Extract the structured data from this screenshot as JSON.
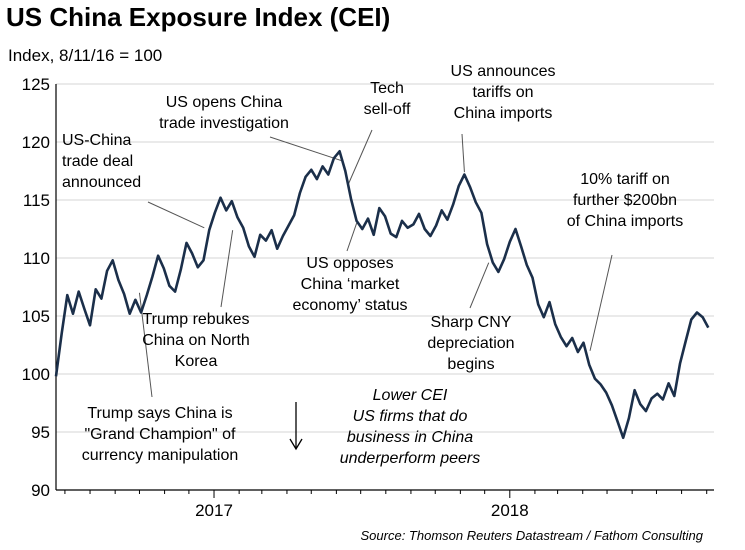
{
  "chart_data": {
    "type": "line",
    "title": "US China Exposure Index (CEI)",
    "subtitle": "Index, 8/11/16 = 100",
    "source": "Source: Thomson Reuters Datastream / Fathom Consulting",
    "ylim": [
      90,
      125
    ],
    "yticks": [
      90,
      95,
      100,
      105,
      110,
      115,
      120,
      125
    ],
    "xticks": [
      {
        "label": "2017",
        "x": "2017-01-01"
      },
      {
        "label": "2018",
        "x": "2018-01-01"
      }
    ],
    "xlim": [
      "2016-06-20",
      "2018-09-10"
    ],
    "grid": true,
    "series": [
      {
        "name": "",
        "color": "#1b2f4a",
        "points": [
          [
            "2016-06-20",
            99.8
          ],
          [
            "2016-06-27",
            103.5
          ],
          [
            "2016-07-04",
            106.8
          ],
          [
            "2016-07-11",
            105.2
          ],
          [
            "2016-07-18",
            107.1
          ],
          [
            "2016-07-25",
            105.6
          ],
          [
            "2016-08-01",
            104.2
          ],
          [
            "2016-08-08",
            107.3
          ],
          [
            "2016-08-15",
            106.5
          ],
          [
            "2016-08-22",
            108.9
          ],
          [
            "2016-08-29",
            109.8
          ],
          [
            "2016-09-05",
            108.1
          ],
          [
            "2016-09-12",
            106.9
          ],
          [
            "2016-09-19",
            105.2
          ],
          [
            "2016-09-26",
            106.4
          ],
          [
            "2016-10-03",
            105.3
          ],
          [
            "2016-10-10",
            106.8
          ],
          [
            "2016-10-17",
            108.4
          ],
          [
            "2016-10-24",
            110.2
          ],
          [
            "2016-10-31",
            109.1
          ],
          [
            "2016-11-07",
            107.6
          ],
          [
            "2016-11-14",
            107.1
          ],
          [
            "2016-11-21",
            109.0
          ],
          [
            "2016-11-28",
            111.3
          ],
          [
            "2016-12-05",
            110.4
          ],
          [
            "2016-12-12",
            109.2
          ],
          [
            "2016-12-19",
            109.8
          ],
          [
            "2016-12-26",
            112.4
          ],
          [
            "2017-01-02",
            113.9
          ],
          [
            "2017-01-09",
            115.2
          ],
          [
            "2017-01-16",
            114.1
          ],
          [
            "2017-01-23",
            114.9
          ],
          [
            "2017-01-30",
            113.5
          ],
          [
            "2017-02-06",
            112.6
          ],
          [
            "2017-02-13",
            111.0
          ],
          [
            "2017-02-20",
            110.1
          ],
          [
            "2017-02-27",
            112.0
          ],
          [
            "2017-03-06",
            111.5
          ],
          [
            "2017-03-13",
            112.4
          ],
          [
            "2017-03-20",
            110.8
          ],
          [
            "2017-03-27",
            111.9
          ],
          [
            "2017-04-03",
            112.8
          ],
          [
            "2017-04-10",
            113.7
          ],
          [
            "2017-04-17",
            115.6
          ],
          [
            "2017-04-24",
            117.0
          ],
          [
            "2017-05-01",
            117.6
          ],
          [
            "2017-05-08",
            116.8
          ],
          [
            "2017-05-15",
            117.9
          ],
          [
            "2017-05-22",
            117.2
          ],
          [
            "2017-05-29",
            118.6
          ],
          [
            "2017-06-05",
            119.2
          ],
          [
            "2017-06-12",
            117.5
          ],
          [
            "2017-06-19",
            115.1
          ],
          [
            "2017-06-26",
            113.2
          ],
          [
            "2017-07-03",
            112.5
          ],
          [
            "2017-07-10",
            113.4
          ],
          [
            "2017-07-17",
            112.0
          ],
          [
            "2017-07-24",
            114.3
          ],
          [
            "2017-07-31",
            113.6
          ],
          [
            "2017-08-07",
            112.1
          ],
          [
            "2017-08-14",
            111.8
          ],
          [
            "2017-08-21",
            113.2
          ],
          [
            "2017-08-28",
            112.6
          ],
          [
            "2017-09-04",
            112.9
          ],
          [
            "2017-09-11",
            113.8
          ],
          [
            "2017-09-18",
            112.5
          ],
          [
            "2017-09-25",
            111.9
          ],
          [
            "2017-10-02",
            112.8
          ],
          [
            "2017-10-09",
            114.1
          ],
          [
            "2017-10-16",
            113.3
          ],
          [
            "2017-10-23",
            114.6
          ],
          [
            "2017-10-30",
            116.2
          ],
          [
            "2017-11-06",
            117.2
          ],
          [
            "2017-11-13",
            116.1
          ],
          [
            "2017-11-20",
            114.8
          ],
          [
            "2017-11-27",
            113.9
          ],
          [
            "2017-12-04",
            111.2
          ],
          [
            "2017-12-11",
            109.6
          ],
          [
            "2017-12-18",
            108.8
          ],
          [
            "2017-12-25",
            109.9
          ],
          [
            "2018-01-01",
            111.4
          ],
          [
            "2018-01-08",
            112.5
          ],
          [
            "2018-01-15",
            111.0
          ],
          [
            "2018-01-22",
            109.4
          ],
          [
            "2018-01-29",
            108.3
          ],
          [
            "2018-02-05",
            106.0
          ],
          [
            "2018-02-12",
            104.9
          ],
          [
            "2018-02-19",
            106.2
          ],
          [
            "2018-02-26",
            104.3
          ],
          [
            "2018-03-05",
            103.2
          ],
          [
            "2018-03-12",
            102.4
          ],
          [
            "2018-03-19",
            103.1
          ],
          [
            "2018-03-26",
            101.9
          ],
          [
            "2018-04-02",
            102.7
          ],
          [
            "2018-04-09",
            100.8
          ],
          [
            "2018-04-16",
            99.6
          ],
          [
            "2018-04-23",
            99.1
          ],
          [
            "2018-04-30",
            98.4
          ],
          [
            "2018-05-07",
            97.3
          ],
          [
            "2018-05-14",
            95.9
          ],
          [
            "2018-05-21",
            94.5
          ],
          [
            "2018-05-28",
            96.2
          ],
          [
            "2018-06-04",
            98.6
          ],
          [
            "2018-06-11",
            97.4
          ],
          [
            "2018-06-18",
            96.8
          ],
          [
            "2018-06-25",
            97.9
          ],
          [
            "2018-07-02",
            98.3
          ],
          [
            "2018-07-09",
            97.8
          ],
          [
            "2018-07-16",
            99.2
          ],
          [
            "2018-07-23",
            98.1
          ],
          [
            "2018-07-30",
            100.9
          ],
          [
            "2018-08-06",
            102.8
          ],
          [
            "2018-08-13",
            104.7
          ],
          [
            "2018-08-20",
            105.3
          ],
          [
            "2018-08-27",
            104.9
          ],
          [
            "2018-09-03",
            104.0
          ]
        ]
      }
    ],
    "annotations": [
      {
        "lines": [
          "US-China",
          "trade deal",
          "announced"
        ],
        "x": "2016-12-20",
        "y": 112.6
      },
      {
        "lines": [
          "US opens China",
          "trade investigation"
        ],
        "x": "2017-06-07",
        "y": 118.4
      },
      {
        "lines": [
          "Tech",
          "sell-off"
        ],
        "x": "2017-06-16",
        "y": 116.4
      },
      {
        "lines": [
          "US announces",
          "tariffs on",
          "China imports"
        ],
        "x": "2017-11-06",
        "y": 117.4
      },
      {
        "lines": [
          "10% tariff on",
          "further $200bn",
          "of China imports"
        ],
        "x": "2018-04-10",
        "y": 102.0
      },
      {
        "lines": [
          "Trump rebukes",
          "China on North",
          "Korea"
        ],
        "x": "2017-01-24",
        "y": 112.4
      },
      {
        "lines": [
          "US opposes",
          "China ‘market",
          "economy’ status"
        ],
        "x": "2017-06-26",
        "y": 113.0
      },
      {
        "lines": [
          "Sharp CNY",
          "depreciation",
          "begins"
        ],
        "x": "2017-12-06",
        "y": 109.6
      },
      {
        "lines": [
          "Trump says China is",
          "\"Grand Champion\" of",
          "currency manipulation"
        ],
        "x": "2016-10-01",
        "y": 107.0
      }
    ],
    "note": [
      "Lower CEI",
      "US firms that do",
      "business in China",
      "underperform peers"
    ]
  }
}
